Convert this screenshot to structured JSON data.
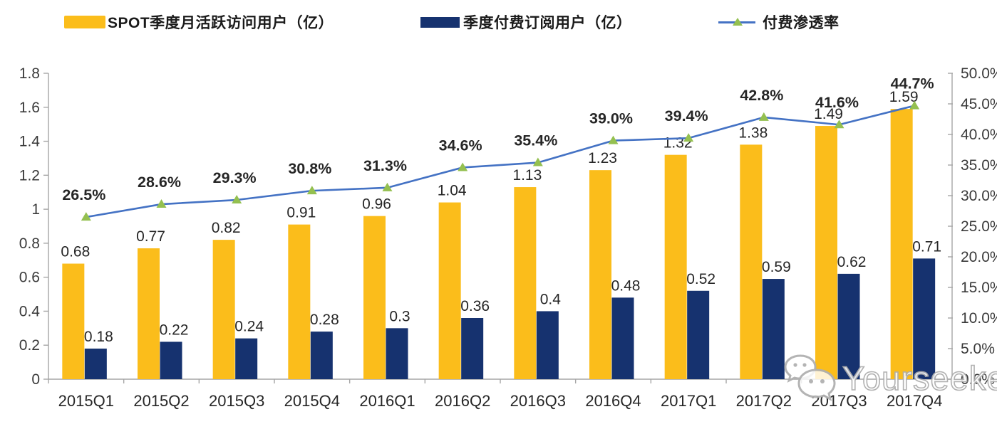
{
  "legend": [
    {
      "label": "SPOT季度月活跃访问用户（亿）",
      "swatch_color": "#FBBD1B"
    },
    {
      "label": "季度付费订阅用户（亿）",
      "swatch_color": "#16326F"
    },
    {
      "label": "付费渗透率",
      "line_color": "#4472C4",
      "marker_color": "#94C050"
    }
  ],
  "watermark": {
    "icon": "wechat-icon",
    "text": "Yourseeker"
  },
  "chart_data": {
    "type": "bar",
    "subtype": "grouped-bars-with-line",
    "title": "",
    "xlabel": "",
    "ylabel": "",
    "grid": false,
    "legend_position": "top",
    "categories": [
      "2015Q1",
      "2015Q2",
      "2015Q3",
      "2015Q4",
      "2016Q1",
      "2016Q2",
      "2016Q3",
      "2016Q4",
      "2017Q1",
      "2017Q2",
      "2017Q3",
      "2017Q4"
    ],
    "series": [
      {
        "name": "SPOT季度月活跃访问用户（亿）",
        "type": "bar",
        "axis": "left",
        "color": "#FBBD1B",
        "values": [
          0.68,
          0.77,
          0.82,
          0.91,
          0.96,
          1.04,
          1.13,
          1.23,
          1.32,
          1.38,
          1.49,
          1.59
        ],
        "labels": [
          "0.68",
          "0.77",
          "0.82",
          "0.91",
          "0.96",
          "1.04",
          "1.13",
          "1.23",
          "1.32",
          "1.38",
          "1.49",
          "1.59"
        ]
      },
      {
        "name": "季度付费订阅用户（亿）",
        "type": "bar",
        "axis": "left",
        "color": "#16326F",
        "values": [
          0.18,
          0.22,
          0.24,
          0.28,
          0.3,
          0.36,
          0.4,
          0.48,
          0.52,
          0.59,
          0.62,
          0.71
        ],
        "labels": [
          "0.18",
          "0.22",
          "0.24",
          "0.28",
          "0.3",
          "0.36",
          "0.4",
          "0.48",
          "0.52",
          "0.59",
          "0.62",
          "0.71"
        ]
      },
      {
        "name": "付费渗透率",
        "type": "line",
        "axis": "right",
        "color": "#4472C4",
        "marker": "triangle",
        "marker_color": "#94C050",
        "values": [
          26.5,
          28.6,
          29.3,
          30.8,
          31.3,
          34.6,
          35.4,
          39.0,
          39.4,
          42.8,
          41.6,
          44.7
        ],
        "labels": [
          "26.5%",
          "28.6%",
          "29.3%",
          "30.8%",
          "31.3%",
          "34.6%",
          "35.4%",
          "39.0%",
          "39.4%",
          "42.8%",
          "41.6%",
          "44.7%"
        ]
      }
    ],
    "left_axis": {
      "min": 0,
      "max": 1.8,
      "step": 0.2,
      "ticks": [
        "0",
        "0.2",
        "0.4",
        "0.6",
        "0.8",
        "1",
        "1.2",
        "1.4",
        "1.6",
        "1.8"
      ]
    },
    "right_axis": {
      "min": 0,
      "max": 50,
      "step": 5,
      "ticks": [
        "0.0%",
        "5.0%",
        "10.0%",
        "15.0%",
        "20.0%",
        "25.0%",
        "30.0%",
        "35.0%",
        "40.0%",
        "45.0%",
        "50.0%"
      ]
    }
  }
}
